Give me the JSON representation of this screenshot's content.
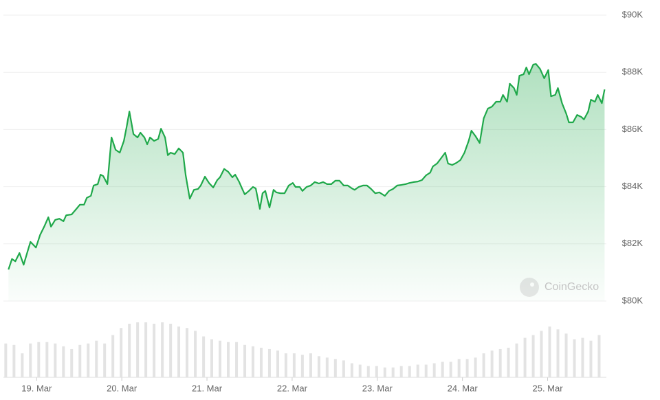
{
  "chart_data": {
    "type": "line",
    "color": "#1fa84a",
    "grid": true,
    "watermark": "CoinGecko",
    "xlim": [
      18.61,
      25.69
    ],
    "ylim": [
      80000,
      90000
    ],
    "xticks": [
      {
        "value": 19,
        "label": "19. Mar"
      },
      {
        "value": 20,
        "label": "20. Mar"
      },
      {
        "value": 21,
        "label": "21. Mar"
      },
      {
        "value": 22,
        "label": "22. Mar"
      },
      {
        "value": 23,
        "label": "23. Mar"
      },
      {
        "value": 24,
        "label": "24. Mar"
      },
      {
        "value": 25,
        "label": "25. Mar"
      }
    ],
    "yticks": [
      {
        "value": 80000,
        "label": "$80K"
      },
      {
        "value": 82000,
        "label": "$82K"
      },
      {
        "value": 84000,
        "label": "$84K"
      },
      {
        "value": 86000,
        "label": "$86K"
      },
      {
        "value": 88000,
        "label": "$88K"
      },
      {
        "value": 90000,
        "label": "$90K"
      }
    ],
    "x": [
      18.669,
      18.71,
      18.75,
      18.798,
      18.847,
      18.895,
      18.927,
      18.992,
      19.04,
      19.089,
      19.137,
      19.169,
      19.218,
      19.266,
      19.315,
      19.347,
      19.411,
      19.46,
      19.508,
      19.556,
      19.589,
      19.637,
      19.669,
      19.718,
      19.75,
      19.782,
      19.831,
      19.879,
      19.927,
      19.976,
      20.024,
      20.056,
      20.089,
      20.137,
      20.185,
      20.218,
      20.266,
      20.298,
      20.331,
      20.379,
      20.427,
      20.46,
      20.508,
      20.54,
      20.573,
      20.621,
      20.669,
      20.718,
      20.75,
      20.798,
      20.847,
      20.895,
      20.927,
      20.976,
      21.024,
      21.073,
      21.121,
      21.153,
      21.202,
      21.25,
      21.298,
      21.331,
      21.379,
      21.411,
      21.444,
      21.492,
      21.54,
      21.573,
      21.621,
      21.653,
      21.685,
      21.734,
      21.782,
      21.815,
      21.863,
      21.911,
      21.96,
      22.008,
      22.04,
      22.089,
      22.121,
      22.169,
      22.218,
      22.266,
      22.315,
      22.363,
      22.411,
      22.46,
      22.508,
      22.556,
      22.605,
      22.653,
      22.702,
      22.734,
      22.782,
      22.831,
      22.879,
      22.927,
      22.976,
      23.024,
      23.089,
      23.137,
      23.185,
      23.234,
      23.282,
      23.331,
      23.379,
      23.427,
      23.476,
      23.524,
      23.573,
      23.621,
      23.653,
      23.702,
      23.75,
      23.798,
      23.831,
      23.879,
      23.927,
      23.976,
      24.024,
      24.073,
      24.105,
      24.153,
      24.202,
      24.25,
      24.298,
      24.347,
      24.395,
      24.444,
      24.476,
      24.524,
      24.556,
      24.605,
      24.637,
      24.669,
      24.718,
      24.75,
      24.782,
      24.831,
      24.863,
      24.911,
      24.96,
      25.008,
      25.04,
      25.089,
      25.121,
      25.169,
      25.218,
      25.25,
      25.298,
      25.347,
      25.395,
      25.427,
      25.476,
      25.508,
      25.556,
      25.589,
      25.637,
      25.669
    ],
    "values": [
      81100,
      81470,
      81390,
      81680,
      81270,
      81750,
      82070,
      81870,
      82310,
      82600,
      82930,
      82600,
      82840,
      82880,
      82790,
      83000,
      83030,
      83200,
      83370,
      83370,
      83610,
      83680,
      84040,
      84090,
      84420,
      84370,
      84090,
      85720,
      85290,
      85190,
      85600,
      86080,
      86630,
      85840,
      85720,
      85890,
      85720,
      85480,
      85720,
      85600,
      85670,
      86030,
      85720,
      85100,
      85190,
      85140,
      85340,
      85190,
      84400,
      83580,
      83890,
      83920,
      84040,
      84350,
      84130,
      83970,
      84230,
      84330,
      84620,
      84520,
      84330,
      84420,
      84160,
      83940,
      83730,
      83850,
      83990,
      83940,
      83220,
      83770,
      83850,
      83270,
      83890,
      83800,
      83770,
      83770,
      84040,
      84130,
      83990,
      83990,
      83850,
      83990,
      84040,
      84160,
      84110,
      84160,
      84090,
      84090,
      84210,
      84210,
      84040,
      84040,
      83940,
      83890,
      83990,
      84040,
      84040,
      83920,
      83770,
      83800,
      83680,
      83850,
      83920,
      84040,
      84060,
      84090,
      84130,
      84160,
      84180,
      84230,
      84400,
      84490,
      84710,
      84810,
      85000,
      85190,
      84810,
      84760,
      84830,
      84930,
      85190,
      85600,
      85960,
      85770,
      85530,
      86390,
      86730,
      86800,
      86970,
      86970,
      87210,
      86970,
      87600,
      87450,
      87210,
      87880,
      87930,
      88170,
      87930,
      88270,
      88290,
      88120,
      87790,
      88080,
      87160,
      87210,
      87450,
      86920,
      86560,
      86250,
      86250,
      86510,
      86440,
      86350,
      86630,
      87040,
      86970,
      87210,
      86920,
      87400
    ],
    "volume": {
      "type": "bar",
      "color": "#e3e3e3",
      "x": [
        18.637,
        18.734,
        18.831,
        18.927,
        19.024,
        19.121,
        19.218,
        19.315,
        19.411,
        19.508,
        19.605,
        19.702,
        19.798,
        19.895,
        19.992,
        20.089,
        20.185,
        20.282,
        20.379,
        20.476,
        20.573,
        20.669,
        20.766,
        20.863,
        20.96,
        21.056,
        21.153,
        21.25,
        21.347,
        21.444,
        21.54,
        21.637,
        21.734,
        21.831,
        21.927,
        22.024,
        22.121,
        22.218,
        22.315,
        22.411,
        22.508,
        22.605,
        22.702,
        22.798,
        22.895,
        22.992,
        23.089,
        23.185,
        23.282,
        23.379,
        23.476,
        23.573,
        23.669,
        23.766,
        23.863,
        23.96,
        24.056,
        24.153,
        24.25,
        24.347,
        24.444,
        24.54,
        24.637,
        24.734,
        24.831,
        24.927,
        25.024,
        25.121,
        25.218,
        25.315,
        25.411,
        25.508,
        25.605
      ],
      "values": [
        48,
        46,
        34,
        48,
        50,
        50,
        48,
        44,
        40,
        46,
        48,
        52,
        48,
        60,
        70,
        76,
        78,
        78,
        76,
        78,
        76,
        72,
        70,
        66,
        58,
        54,
        52,
        50,
        50,
        46,
        44,
        42,
        40,
        38,
        34,
        34,
        32,
        34,
        30,
        28,
        26,
        24,
        20,
        18,
        16,
        16,
        14,
        14,
        16,
        16,
        18,
        18,
        20,
        22,
        22,
        26,
        26,
        28,
        34,
        38,
        40,
        42,
        48,
        56,
        60,
        66,
        72,
        68,
        62,
        54,
        56,
        52,
        60
      ]
    }
  }
}
